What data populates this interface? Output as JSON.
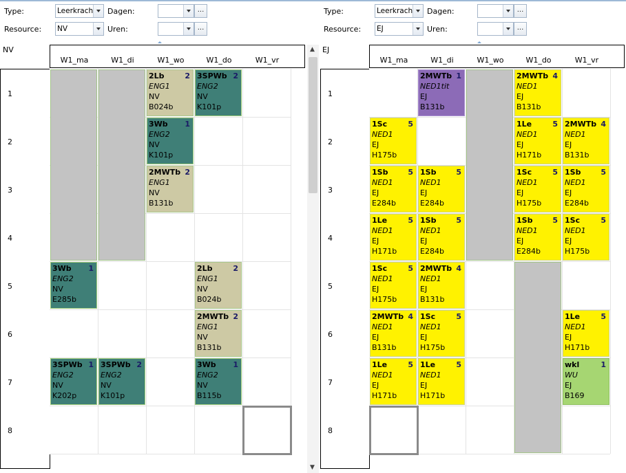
{
  "panels": [
    {
      "id": "left",
      "type_label": "Type:",
      "type_value": "Leerkracht",
      "days_label": "Dagen:",
      "days_value": "",
      "resource_label": "Resource:",
      "resource_value": "NV",
      "hours_label": "Uren:",
      "hours_value": "",
      "dots_label": "...",
      "resource_code": "NV",
      "days": [
        "W1_ma",
        "W1_di",
        "W1_wo",
        "W1_do",
        "W1_vr"
      ],
      "hours": [
        "1",
        "2",
        "3",
        "4",
        "5",
        "6",
        "7",
        "8"
      ],
      "lessons": [
        {
          "day": 2,
          "hour": 0,
          "span": 1,
          "cls": "2Lb",
          "count": "2",
          "subject": "ENG1",
          "teacher": "NV",
          "room": "B024b",
          "color": "tan"
        },
        {
          "day": 3,
          "hour": 0,
          "span": 1,
          "cls": "3SPWb",
          "count": "2",
          "subject": "ENG2",
          "teacher": "NV",
          "room": "K101p",
          "color": "teal"
        },
        {
          "day": 2,
          "hour": 1,
          "span": 1,
          "cls": "3Wb",
          "count": "1",
          "subject": "ENG2",
          "teacher": "NV",
          "room": "K101p",
          "color": "teal"
        },
        {
          "day": 2,
          "hour": 2,
          "span": 1,
          "cls": "2MWTb",
          "count": "2",
          "subject": "ENG1",
          "teacher": "NV",
          "room": "B131b",
          "color": "tan"
        },
        {
          "day": 0,
          "hour": 4,
          "span": 1,
          "cls": "3Wb",
          "count": "1",
          "subject": "ENG2",
          "teacher": "NV",
          "room": "E285b",
          "color": "teal"
        },
        {
          "day": 3,
          "hour": 4,
          "span": 1,
          "cls": "2Lb",
          "count": "2",
          "subject": "ENG1",
          "teacher": "NV",
          "room": "B024b",
          "color": "tan"
        },
        {
          "day": 3,
          "hour": 5,
          "span": 1,
          "cls": "2MWTb",
          "count": "2",
          "subject": "ENG1",
          "teacher": "NV",
          "room": "B131b",
          "color": "tan"
        },
        {
          "day": 0,
          "hour": 6,
          "span": 1,
          "cls": "3SPWb",
          "count": "1",
          "subject": "ENG2",
          "teacher": "NV",
          "room": "K202p",
          "color": "teal"
        },
        {
          "day": 1,
          "hour": 6,
          "span": 1,
          "cls": "3SPWb",
          "count": "2",
          "subject": "ENG2",
          "teacher": "NV",
          "room": "K101p",
          "color": "teal"
        },
        {
          "day": 3,
          "hour": 6,
          "span": 1,
          "cls": "3Wb",
          "count": "1",
          "subject": "ENG2",
          "teacher": "NV",
          "room": "B115b",
          "color": "teal"
        }
      ],
      "blocked": [
        {
          "day": 0,
          "hour": 0,
          "span": 4
        },
        {
          "day": 1,
          "hour": 0,
          "span": 4
        }
      ],
      "selected": {
        "day": 4,
        "hour": 7
      }
    },
    {
      "id": "right",
      "type_label": "Type:",
      "type_value": "Leerkracht",
      "days_label": "Dagen:",
      "days_value": "",
      "resource_label": "Resource:",
      "resource_value": "EJ",
      "hours_label": "Uren:",
      "hours_value": "",
      "dots_label": "...",
      "resource_code": "EJ",
      "days": [
        "W1_ma",
        "W1_di",
        "W1_wo",
        "W1_do",
        "W1_vr"
      ],
      "hours": [
        "1",
        "2",
        "3",
        "4",
        "5",
        "6",
        "7",
        "8"
      ],
      "lessons": [
        {
          "day": 1,
          "hour": 0,
          "span": 1,
          "cls": "2MWTb",
          "count": "1",
          "subject": "NED1tit",
          "teacher": "EJ",
          "room": "B131b",
          "color": "purple"
        },
        {
          "day": 3,
          "hour": 0,
          "span": 1,
          "cls": "2MWTb",
          "count": "4",
          "subject": "NED1",
          "teacher": "EJ",
          "room": "B131b",
          "color": "yellow"
        },
        {
          "day": 0,
          "hour": 1,
          "span": 1,
          "cls": "1Sc",
          "count": "5",
          "subject": "NED1",
          "teacher": "EJ",
          "room": "H175b",
          "color": "yellow"
        },
        {
          "day": 3,
          "hour": 1,
          "span": 1,
          "cls": "1Le",
          "count": "5",
          "subject": "NED1",
          "teacher": "EJ",
          "room": "H171b",
          "color": "yellow"
        },
        {
          "day": 4,
          "hour": 1,
          "span": 1,
          "cls": "2MWTb",
          "count": "4",
          "subject": "NED1",
          "teacher": "EJ",
          "room": "B131b",
          "color": "yellow"
        },
        {
          "day": 0,
          "hour": 2,
          "span": 1,
          "cls": "1Sb",
          "count": "5",
          "subject": "NED1",
          "teacher": "EJ",
          "room": "E284b",
          "color": "yellow"
        },
        {
          "day": 1,
          "hour": 2,
          "span": 1,
          "cls": "1Sb",
          "count": "5",
          "subject": "NED1",
          "teacher": "EJ",
          "room": "E284b",
          "color": "yellow"
        },
        {
          "day": 3,
          "hour": 2,
          "span": 1,
          "cls": "1Sc",
          "count": "5",
          "subject": "NED1",
          "teacher": "EJ",
          "room": "H175b",
          "color": "yellow"
        },
        {
          "day": 4,
          "hour": 2,
          "span": 1,
          "cls": "1Sb",
          "count": "5",
          "subject": "NED1",
          "teacher": "EJ",
          "room": "E284b",
          "color": "yellow"
        },
        {
          "day": 0,
          "hour": 3,
          "span": 1,
          "cls": "1Le",
          "count": "5",
          "subject": "NED1",
          "teacher": "EJ",
          "room": "H171b",
          "color": "yellow"
        },
        {
          "day": 1,
          "hour": 3,
          "span": 1,
          "cls": "1Sb",
          "count": "5",
          "subject": "NED1",
          "teacher": "EJ",
          "room": "E284b",
          "color": "yellow"
        },
        {
          "day": 3,
          "hour": 3,
          "span": 1,
          "cls": "1Sb",
          "count": "5",
          "subject": "NED1",
          "teacher": "EJ",
          "room": "E284b",
          "color": "yellow"
        },
        {
          "day": 4,
          "hour": 3,
          "span": 1,
          "cls": "1Sc",
          "count": "5",
          "subject": "NED1",
          "teacher": "EJ",
          "room": "H175b",
          "color": "yellow"
        },
        {
          "day": 0,
          "hour": 4,
          "span": 1,
          "cls": "1Sc",
          "count": "5",
          "subject": "NED1",
          "teacher": "EJ",
          "room": "H175b",
          "color": "yellow"
        },
        {
          "day": 1,
          "hour": 4,
          "span": 1,
          "cls": "2MWTb",
          "count": "4",
          "subject": "NED1",
          "teacher": "EJ",
          "room": "B131b",
          "color": "yellow"
        },
        {
          "day": 0,
          "hour": 5,
          "span": 1,
          "cls": "2MWTb",
          "count": "4",
          "subject": "NED1",
          "teacher": "EJ",
          "room": "B131b",
          "color": "yellow"
        },
        {
          "day": 1,
          "hour": 5,
          "span": 1,
          "cls": "1Sc",
          "count": "5",
          "subject": "NED1",
          "teacher": "EJ",
          "room": "H175b",
          "color": "yellow"
        },
        {
          "day": 4,
          "hour": 5,
          "span": 1,
          "cls": "1Le",
          "count": "5",
          "subject": "NED1",
          "teacher": "EJ",
          "room": "H171b",
          "color": "yellow"
        },
        {
          "day": 0,
          "hour": 6,
          "span": 1,
          "cls": "1Le",
          "count": "5",
          "subject": "NED1",
          "teacher": "EJ",
          "room": "H171b",
          "color": "yellow"
        },
        {
          "day": 1,
          "hour": 6,
          "span": 1,
          "cls": "1Le",
          "count": "5",
          "subject": "NED1",
          "teacher": "EJ",
          "room": "H171b",
          "color": "yellow"
        },
        {
          "day": 4,
          "hour": 6,
          "span": 1,
          "cls": "wkl",
          "count": "1",
          "subject": "WU",
          "teacher": "EJ",
          "room": "B169",
          "color": "green"
        }
      ],
      "blocked": [
        {
          "day": 2,
          "hour": 0,
          "span": 4
        },
        {
          "day": 3,
          "hour": 4,
          "span": 4
        }
      ],
      "selected": {
        "day": 0,
        "hour": 7
      }
    }
  ]
}
